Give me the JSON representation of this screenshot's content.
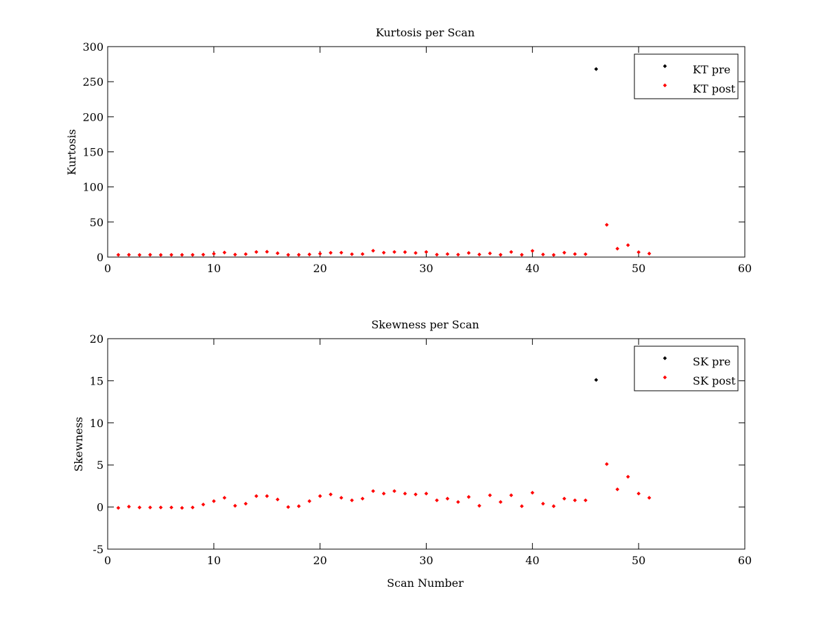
{
  "chart_data": [
    {
      "type": "scatter",
      "title": "Kurtosis per Scan",
      "xlabel": "",
      "ylabel": "Kurtosis",
      "xlim": [
        0,
        60
      ],
      "ylim": [
        0,
        300
      ],
      "xticks": [
        0,
        10,
        20,
        30,
        40,
        50,
        60
      ],
      "yticks": [
        0,
        50,
        100,
        150,
        200,
        250,
        300
      ],
      "grid": false,
      "legend_placement": "top-right",
      "series": [
        {
          "name": "KT pre",
          "color": "#000000",
          "x": [
            46
          ],
          "y": [
            268
          ]
        },
        {
          "name": "KT post",
          "color": "#ff0000",
          "x": [
            1,
            2,
            3,
            4,
            5,
            6,
            7,
            8,
            9,
            10,
            11,
            12,
            13,
            14,
            15,
            16,
            17,
            18,
            19,
            20,
            21,
            22,
            23,
            24,
            25,
            26,
            27,
            28,
            29,
            30,
            31,
            32,
            33,
            34,
            35,
            36,
            37,
            38,
            39,
            40,
            41,
            42,
            43,
            44,
            45,
            47,
            48,
            49,
            50,
            51
          ],
          "y": [
            3.2,
            3.3,
            3.1,
            3.3,
            3.1,
            3.2,
            3.2,
            3.2,
            3.5,
            4.8,
            6.5,
            3.6,
            4.2,
            7.3,
            7.6,
            5.5,
            3.2,
            3.3,
            3.8,
            4.9,
            6.1,
            6.3,
            4.1,
            4.3,
            9.1,
            6.3,
            7.3,
            7.1,
            5.9,
            7.3,
            3.5,
            4.3,
            3.5,
            5.9,
            3.7,
            5.3,
            3.3,
            7.3,
            3.3,
            8.9,
            3.7,
            3.1,
            6.3,
            4.3,
            4.1,
            46,
            12,
            17,
            7,
            5
          ]
        }
      ]
    },
    {
      "type": "scatter",
      "title": "Skewness per Scan",
      "xlabel": "Scan Number",
      "ylabel": "Skewness",
      "xlim": [
        0,
        60
      ],
      "ylim": [
        -5,
        20
      ],
      "xticks": [
        0,
        10,
        20,
        30,
        40,
        50,
        60
      ],
      "yticks": [
        -5,
        0,
        5,
        10,
        15,
        20
      ],
      "grid": false,
      "legend_placement": "top-right",
      "series": [
        {
          "name": "SK pre",
          "color": "#000000",
          "x": [
            46
          ],
          "y": [
            15.1
          ]
        },
        {
          "name": "SK post",
          "color": "#ff0000",
          "x": [
            1,
            2,
            3,
            4,
            5,
            6,
            7,
            8,
            9,
            10,
            11,
            12,
            13,
            14,
            15,
            16,
            17,
            18,
            19,
            20,
            21,
            22,
            23,
            24,
            25,
            26,
            27,
            28,
            29,
            30,
            31,
            32,
            33,
            34,
            35,
            36,
            37,
            38,
            39,
            40,
            41,
            42,
            43,
            44,
            45,
            47,
            48,
            49,
            50,
            51
          ],
          "y": [
            -0.1,
            0.05,
            -0.05,
            -0.05,
            -0.05,
            -0.05,
            -0.1,
            -0.05,
            0.3,
            0.7,
            1.1,
            0.15,
            0.4,
            1.3,
            1.3,
            0.9,
            0.0,
            0.1,
            0.7,
            1.3,
            1.5,
            1.1,
            0.8,
            1.0,
            1.9,
            1.6,
            1.9,
            1.6,
            1.5,
            1.6,
            0.8,
            1.0,
            0.6,
            1.2,
            0.15,
            1.4,
            0.6,
            1.4,
            0.1,
            1.7,
            0.4,
            0.1,
            1.0,
            0.8,
            0.8,
            5.1,
            2.1,
            3.6,
            1.6,
            1.1
          ]
        }
      ]
    }
  ]
}
